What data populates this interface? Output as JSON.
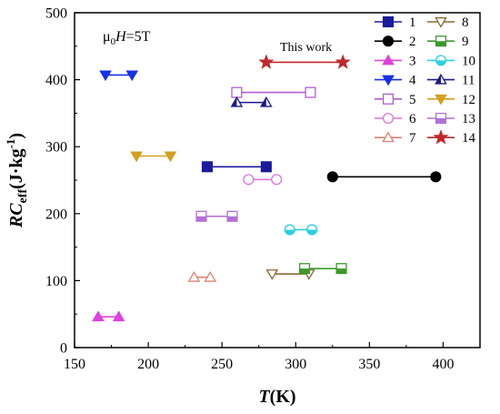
{
  "chart_data": {
    "type": "scatter",
    "xlabel": "T(K)",
    "ylabel": "RCeff(J·kg-1)",
    "xlim": [
      150,
      425
    ],
    "ylim": [
      0,
      500
    ],
    "x_ticks": [
      150,
      200,
      250,
      300,
      350,
      400
    ],
    "y_ticks": [
      0,
      100,
      200,
      300,
      400,
      500
    ],
    "grid": false,
    "legend_position": "top-right",
    "annotations": {
      "field": "μ0H=5T",
      "this_work": "This work"
    },
    "series": [
      {
        "name": "1",
        "marker": "square",
        "fill": "filled",
        "color": "#1a1a9c",
        "x": [
          240,
          280
        ],
        "y": [
          270,
          270
        ]
      },
      {
        "name": "2",
        "marker": "circle",
        "fill": "filled",
        "color": "#000000",
        "x": [
          325,
          395
        ],
        "y": [
          255,
          255
        ]
      },
      {
        "name": "3",
        "marker": "triangle-up",
        "fill": "filled",
        "color": "#e040e0",
        "x": [
          166,
          180
        ],
        "y": [
          46,
          46
        ]
      },
      {
        "name": "4",
        "marker": "triangle-down",
        "fill": "filled",
        "color": "#1530e8",
        "x": [
          171,
          189
        ],
        "y": [
          407,
          407
        ]
      },
      {
        "name": "5",
        "marker": "square",
        "fill": "open",
        "color": "#b45bd6",
        "x": [
          260,
          310
        ],
        "y": [
          381,
          381
        ]
      },
      {
        "name": "6",
        "marker": "circle",
        "fill": "open",
        "color": "#e070e0",
        "x": [
          268,
          287
        ],
        "y": [
          251,
          251
        ]
      },
      {
        "name": "7",
        "marker": "triangle-up",
        "fill": "open",
        "color": "#e08070",
        "x": [
          231,
          242
        ],
        "y": [
          105,
          105
        ]
      },
      {
        "name": "8",
        "marker": "triangle-down",
        "fill": "open",
        "color": "#8a6a30",
        "x": [
          284,
          309
        ],
        "y": [
          110,
          110
        ]
      },
      {
        "name": "9",
        "marker": "square",
        "fill": "half",
        "color": "#3a9a2a",
        "x": [
          306,
          331
        ],
        "y": [
          118,
          118
        ]
      },
      {
        "name": "10",
        "marker": "circle",
        "fill": "half",
        "color": "#2ad0e0",
        "x": [
          296,
          311
        ],
        "y": [
          176,
          176
        ]
      },
      {
        "name": "11",
        "marker": "triangle-up",
        "fill": "half",
        "color": "#1a1a8a",
        "x": [
          260,
          280
        ],
        "y": [
          366,
          366
        ]
      },
      {
        "name": "12",
        "marker": "triangle-down",
        "fill": "filled",
        "color": "#d4a020",
        "x": [
          192,
          215
        ],
        "y": [
          286,
          286
        ]
      },
      {
        "name": "13",
        "marker": "square",
        "fill": "half",
        "color": "#b070d8",
        "x": [
          236,
          257
        ],
        "y": [
          196,
          196
        ]
      },
      {
        "name": "14",
        "marker": "star",
        "fill": "filled",
        "color": "#c0282a",
        "x": [
          280,
          332
        ],
        "y": [
          426,
          426
        ]
      }
    ]
  }
}
